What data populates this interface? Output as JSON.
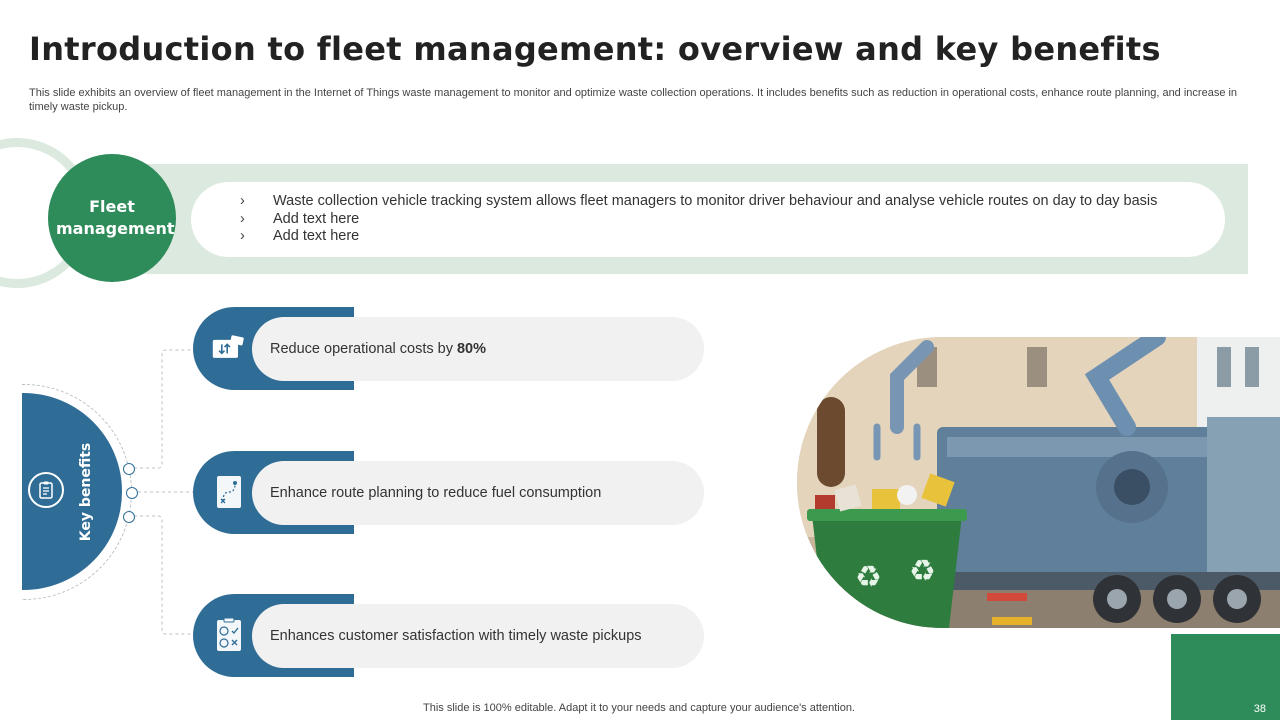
{
  "slide": {
    "title": "Introduction to fleet management: overview and key benefits",
    "subtitle": "This slide exhibits an overview of fleet management in the Internet of Things waste management to monitor and optimize waste collection operations. It includes benefits such as reduction in operational costs, enhance route planning, and increase in timely waste pickup."
  },
  "fleet": {
    "label": "Fleet management",
    "bullet_glyph": "›",
    "points": [
      "Waste collection vehicle tracking system allows fleet managers to monitor driver behaviour and analyse vehicle routes on day to day basis",
      "Add text here",
      "Add text here"
    ]
  },
  "key_benefits": {
    "label": "Key benefits",
    "items": [
      {
        "text": "Reduce operational costs by",
        "highlight": "80%",
        "icon": "money-transfer-icon"
      },
      {
        "text": "Enhance route planning to reduce fuel consumption",
        "highlight": "",
        "icon": "route-map-icon"
      },
      {
        "text": "Enhances customer satisfaction with timely waste pickups",
        "highlight": "",
        "icon": "satisfaction-checklist-icon"
      }
    ]
  },
  "image": {
    "description_icon": "robotic-garbage-truck-icon"
  },
  "footer": {
    "note": "This slide is 100% editable. Adapt it to your needs and capture your audience's attention.",
    "page_number": "38"
  },
  "colors": {
    "green": "#2e8b5a",
    "blue": "#2f6d97",
    "light_green": "#dbe9df",
    "pill_gray": "#f1f1f1"
  }
}
